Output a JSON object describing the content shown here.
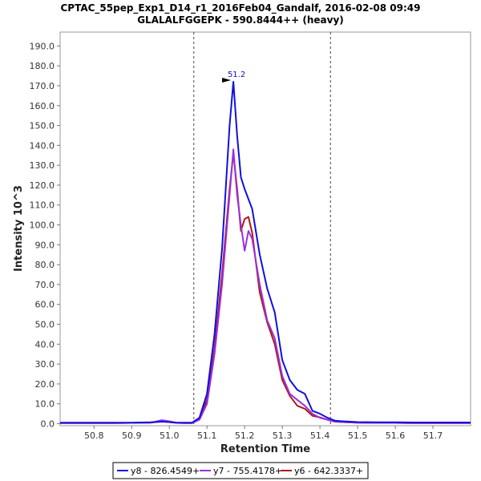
{
  "chart_data": {
    "type": "line",
    "title": "CPTAC_55pep_Exp1_D14_r1_2016Feb04_Gandalf, 2016-02-08 09:49",
    "subtitle": "GLALALFGGEPK - 590.8444++ (heavy)",
    "xlabel": "Retention Time",
    "ylabel": "Intensity 10^3",
    "xlim": [
      50.71,
      51.8
    ],
    "ylim": [
      -1,
      197
    ],
    "xticks": [
      50.8,
      50.9,
      51.0,
      51.1,
      51.2,
      51.3,
      51.4,
      51.5,
      51.6,
      51.7
    ],
    "xtick_labels": [
      "50.8",
      "50.9",
      "51.0",
      "51.1",
      "51.2",
      "51.3",
      "51.4",
      "51.5",
      "51.6",
      "51.7"
    ],
    "yticks": [
      0,
      10,
      20,
      30,
      40,
      50,
      60,
      70,
      80,
      90,
      100,
      110,
      120,
      130,
      140,
      150,
      160,
      170,
      180,
      190
    ],
    "ytick_labels": [
      "0.0",
      "10.0",
      "20.0",
      "30.0",
      "40.0",
      "50.0",
      "60.0",
      "70.0",
      "80.0",
      "90.0",
      "100.0",
      "110.0",
      "120.0",
      "130.0",
      "140.0",
      "150.0",
      "160.0",
      "170.0",
      "180.0",
      "190.0"
    ],
    "vlines": [
      51.065,
      51.428
    ],
    "peak_annotation": {
      "x": 51.17,
      "y": 172,
      "label": "51.2"
    },
    "legend": {
      "position": "bottom"
    },
    "series": [
      {
        "name": "y8 - 826.4549+",
        "color": "#1010e0",
        "x": [
          50.71,
          50.75,
          50.8,
          50.85,
          50.9,
          50.95,
          50.98,
          51.0,
          51.02,
          51.04,
          51.06,
          51.08,
          51.1,
          51.12,
          51.14,
          51.16,
          51.17,
          51.18,
          51.19,
          51.2,
          51.22,
          51.24,
          51.26,
          51.28,
          51.3,
          51.32,
          51.34,
          51.36,
          51.38,
          51.4,
          51.42,
          51.44,
          51.46,
          51.5,
          51.55,
          51.6,
          51.65,
          51.7,
          51.75,
          51.8
        ],
        "y": [
          0.5,
          0.5,
          0.5,
          0.5,
          0.5,
          0.7,
          1.0,
          0.8,
          0.5,
          0.5,
          0.5,
          3.0,
          15.0,
          45.0,
          88.0,
          150.0,
          172.0,
          145.0,
          124.0,
          118.0,
          108.0,
          85.0,
          68.0,
          56.0,
          32.0,
          22.0,
          17.0,
          15.0,
          6.5,
          5.0,
          3.0,
          1.5,
          1.2,
          0.8,
          0.7,
          0.7,
          0.6,
          0.6,
          0.6,
          0.6
        ]
      },
      {
        "name": "y7 - 755.4178+",
        "color": "#9a30e0",
        "x": [
          50.71,
          50.75,
          50.8,
          50.85,
          50.9,
          50.95,
          50.98,
          51.0,
          51.02,
          51.04,
          51.06,
          51.08,
          51.1,
          51.12,
          51.14,
          51.16,
          51.17,
          51.18,
          51.19,
          51.2,
          51.21,
          51.22,
          51.24,
          51.26,
          51.28,
          51.3,
          51.32,
          51.34,
          51.36,
          51.38,
          51.4,
          51.42,
          51.44,
          51.46,
          51.5,
          51.55,
          51.6,
          51.65,
          51.7,
          51.75,
          51.8
        ],
        "y": [
          0.3,
          0.3,
          0.3,
          0.3,
          0.4,
          0.5,
          1.8,
          1.2,
          0.4,
          0.3,
          0.3,
          2.0,
          10.0,
          35.0,
          70.0,
          115.0,
          138.0,
          115.0,
          100.0,
          87.0,
          97.0,
          93.0,
          70.0,
          52.0,
          43.0,
          24.0,
          15.0,
          12.0,
          9.0,
          5.0,
          3.0,
          2.0,
          1.0,
          0.8,
          0.5,
          0.4,
          0.4,
          0.3,
          0.3,
          0.3,
          0.3
        ]
      },
      {
        "name": "y6 - 642.3337+",
        "color": "#b01818",
        "x": [
          50.71,
          50.75,
          50.8,
          50.85,
          50.9,
          50.95,
          50.98,
          51.0,
          51.02,
          51.04,
          51.06,
          51.08,
          51.1,
          51.12,
          51.14,
          51.16,
          51.17,
          51.18,
          51.19,
          51.2,
          51.21,
          51.22,
          51.24,
          51.26,
          51.28,
          51.3,
          51.32,
          51.34,
          51.36,
          51.38,
          51.4,
          51.42,
          51.44,
          51.46,
          51.5,
          51.55,
          51.6,
          51.65,
          51.7,
          51.75,
          51.8
        ],
        "y": [
          0.3,
          0.3,
          0.3,
          0.3,
          0.4,
          0.5,
          1.2,
          0.8,
          0.4,
          0.3,
          0.3,
          2.5,
          12.0,
          38.0,
          75.0,
          118.0,
          136.0,
          118.0,
          97.0,
          103.0,
          104.0,
          96.0,
          66.0,
          51.0,
          40.0,
          22.0,
          14.0,
          9.0,
          7.5,
          4.0,
          3.2,
          2.0,
          1.0,
          0.8,
          0.5,
          0.4,
          0.4,
          0.3,
          0.3,
          0.3,
          0.3
        ]
      }
    ]
  }
}
